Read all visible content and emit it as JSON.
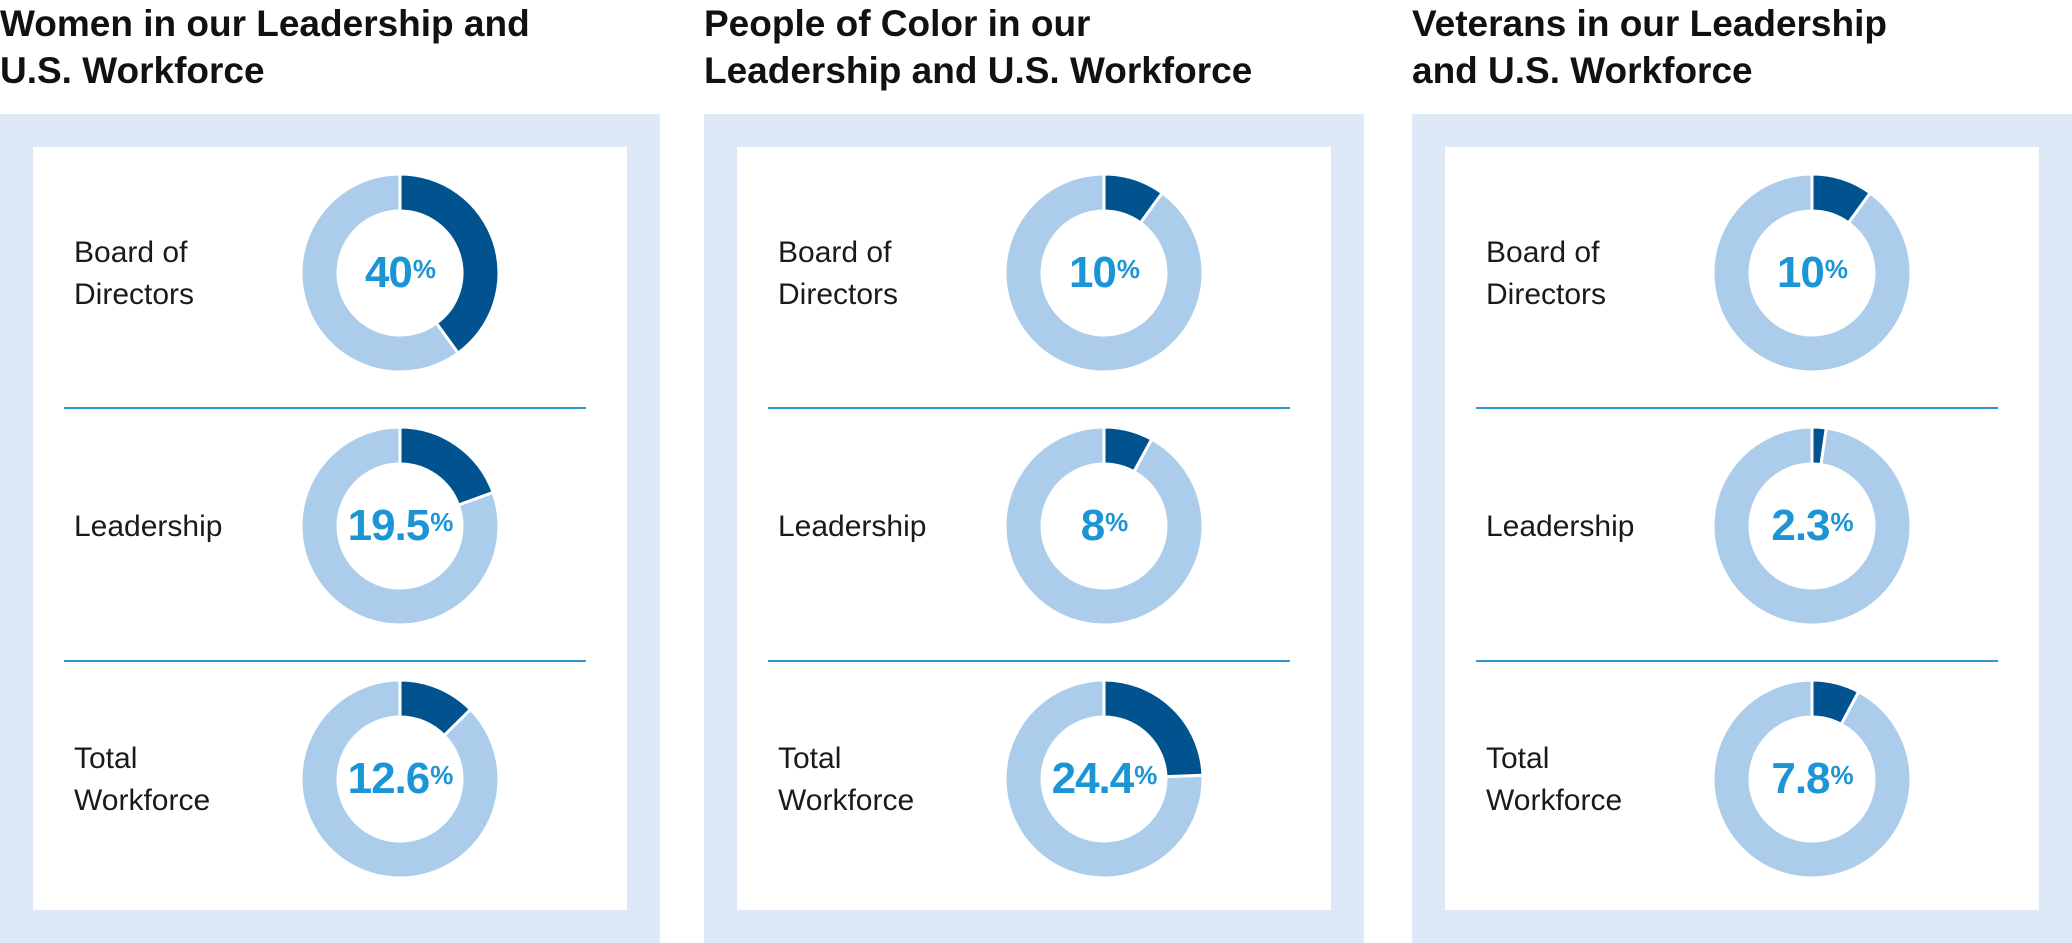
{
  "colors": {
    "highlight": "#00538f",
    "remainder": "#abcdeb",
    "value_text": "#1b95d6",
    "frame": "#dde9f7",
    "divider": "#2e97d1"
  },
  "chart_data": [
    {
      "type": "pie",
      "title": "Women in our Leadership and\nU.S. Workforce",
      "categories": [
        "Board of\nDirectors",
        "Leadership",
        "Total\nWorkforce"
      ],
      "values": [
        40,
        19.5,
        12.6
      ],
      "value_labels": [
        "40",
        "19.5",
        "12.6"
      ],
      "unit": "%"
    },
    {
      "type": "pie",
      "title": "People of Color in our\nLeadership and U.S. Workforce",
      "categories": [
        "Board of\nDirectors",
        "Leadership",
        "Total\nWorkforce"
      ],
      "values": [
        10,
        8,
        24.4
      ],
      "value_labels": [
        "10",
        "8",
        "24.4"
      ],
      "unit": "%"
    },
    {
      "type": "pie",
      "title": "Veterans in our Leadership\nand U.S. Workforce",
      "categories": [
        "Board of\nDirectors",
        "Leadership",
        "Total\nWorkforce"
      ],
      "values": [
        10,
        2.3,
        7.8
      ],
      "value_labels": [
        "10",
        "2.3",
        "7.8"
      ],
      "unit": "%"
    }
  ]
}
